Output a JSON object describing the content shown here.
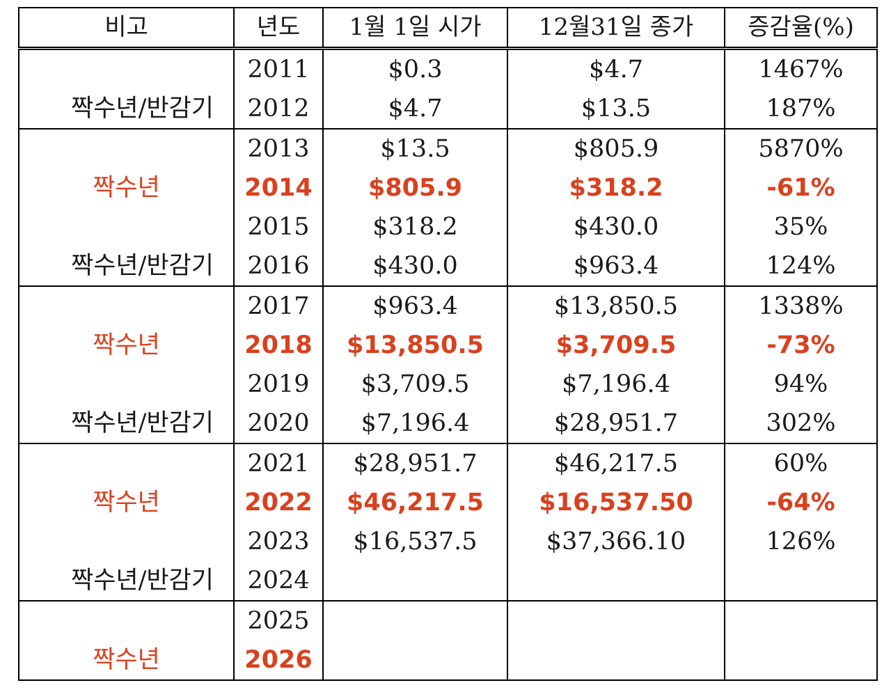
{
  "colors": {
    "highlight": "#d9411e",
    "text": "#1a1a1a",
    "border": "#000000"
  },
  "headers": [
    "비고",
    "년도",
    "1월 1일 시가",
    "12월31일 종가",
    "증감율(%)"
  ],
  "rows": [
    {
      "remark": "",
      "year": "2011",
      "open": "$0.3",
      "close": "$4.7",
      "change": "1467%"
    },
    {
      "remark": "짝수년/반감기",
      "year": "2012",
      "open": "$4.7",
      "close": "$13.5",
      "change": "187%"
    },
    {
      "remark": "",
      "year": "2013",
      "open": "$13.5",
      "close": "$805.9",
      "change": "5870%"
    },
    {
      "remark": "짝수년",
      "year": "2014",
      "open": "$805.9",
      "close": "$318.2",
      "change": "-61%"
    },
    {
      "remark": "",
      "year": "2015",
      "open": "$318.2",
      "close": "$430.0",
      "change": "35%"
    },
    {
      "remark": "짝수년/반감기",
      "year": "2016",
      "open": "$430.0",
      "close": "$963.4",
      "change": "124%"
    },
    {
      "remark": "",
      "year": "2017",
      "open": "$963.4",
      "close": "$13,850.5",
      "change": "1338%"
    },
    {
      "remark": "짝수년",
      "year": "2018",
      "open": "$13,850.5",
      "close": "$3,709.5",
      "change": "-73%"
    },
    {
      "remark": "",
      "year": "2019",
      "open": "$3,709.5",
      "close": "$7,196.4",
      "change": "94%"
    },
    {
      "remark": "짝수년/반감기",
      "year": "2020",
      "open": "$7,196.4",
      "close": "$28,951.7",
      "change": "302%"
    },
    {
      "remark": "",
      "year": "2021",
      "open": "$28,951.7",
      "close": "$46,217.5",
      "change": "60%"
    },
    {
      "remark": "짝수년",
      "year": "2022",
      "open": "$46,217.5",
      "close": "$16,537.50",
      "change": "-64%"
    },
    {
      "remark": "",
      "year": "2023",
      "open": "$16,537.5",
      "close": "$37,366.10",
      "change": "126%"
    },
    {
      "remark": "짝수년/반감기",
      "year": "2024",
      "open": "",
      "close": "",
      "change": ""
    },
    {
      "remark": "",
      "year": "2025",
      "open": "",
      "close": "",
      "change": ""
    },
    {
      "remark": "짝수년",
      "year": "2026",
      "open": "",
      "close": "",
      "change": ""
    }
  ]
}
